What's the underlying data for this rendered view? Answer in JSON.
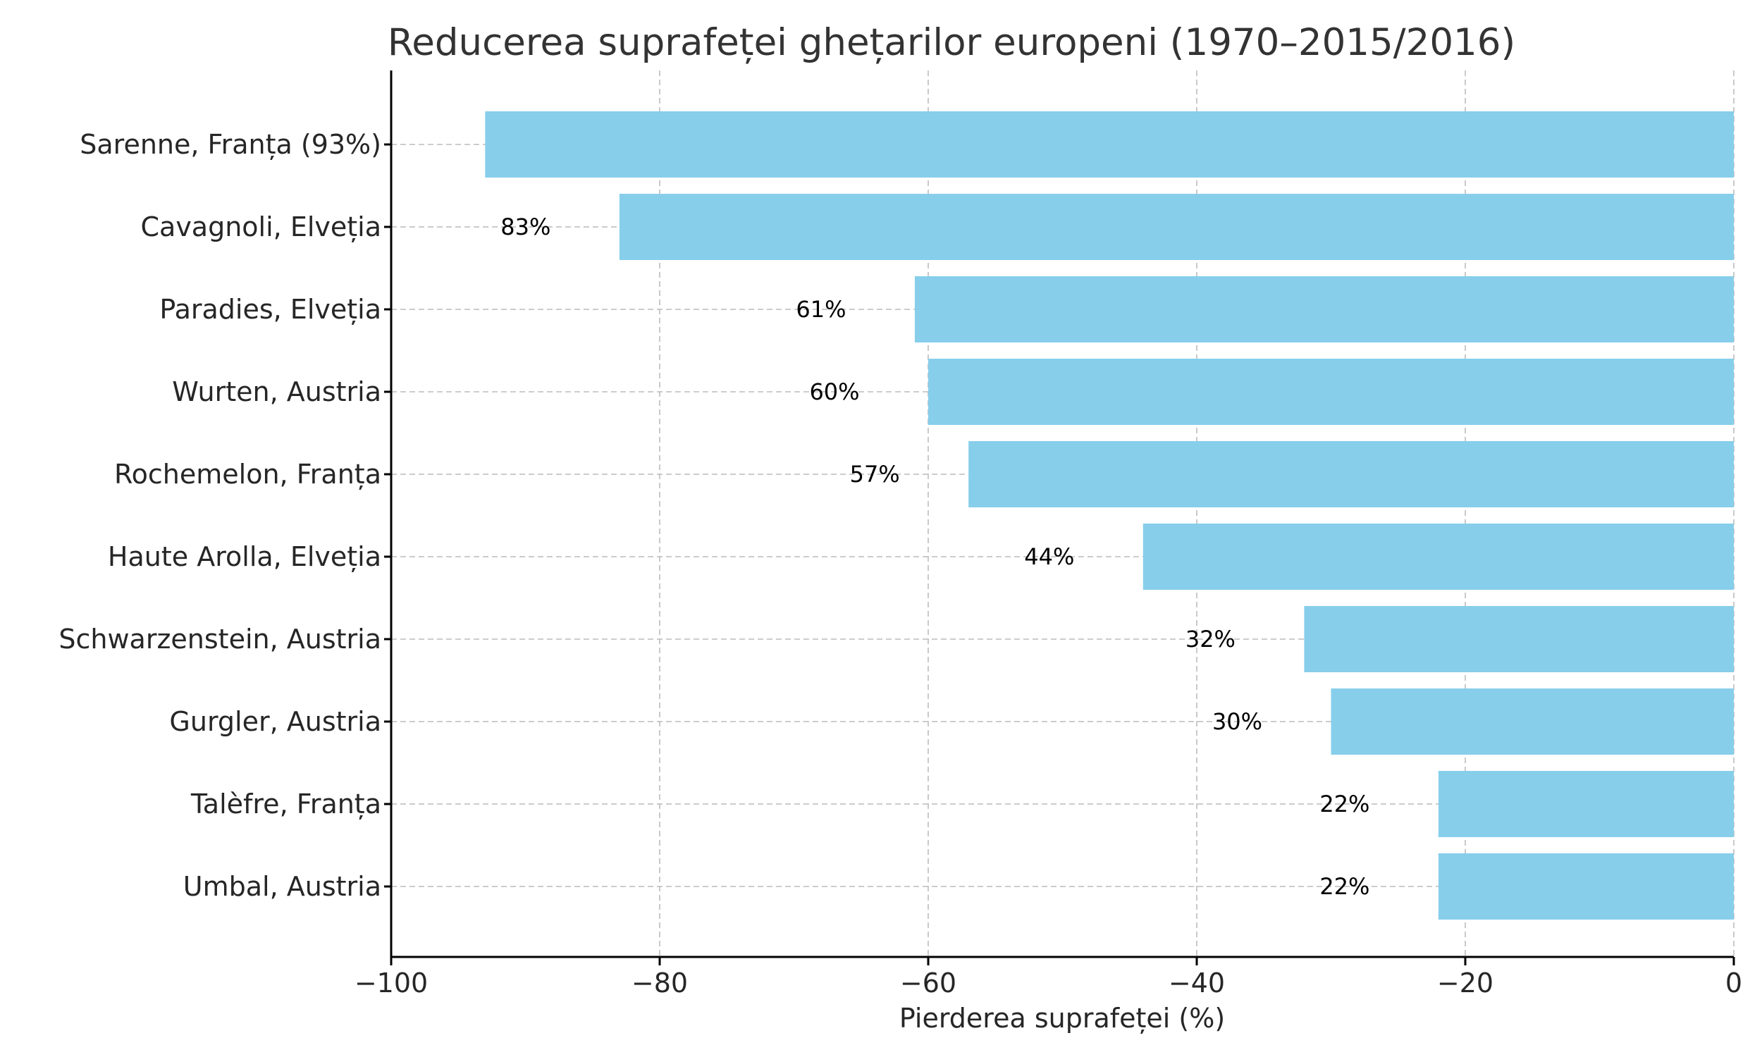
{
  "chart_data": {
    "type": "bar",
    "orientation": "horizontal",
    "title": "Reducerea suprafeței ghețarilor europeni (1970–2015/2016)",
    "xlabel": "Pierderea suprafeței (%)",
    "ylabel": "",
    "xlim": [
      -100,
      0
    ],
    "xticks": [
      -100,
      -80,
      -60,
      -40,
      -20,
      0
    ],
    "xtick_labels": [
      "−100",
      "−80",
      "−60",
      "−40",
      "−20",
      "0"
    ],
    "grid": true,
    "categories": [
      "Sarenne, Franța  (93%)",
      "Cavagnoli, Elveția",
      "Paradies, Elveția",
      "Wurten, Austria",
      "Rochemelon, Franța",
      "Haute Arolla, Elveția",
      "Schwarzenstein, Austria",
      "Gurgler, Austria",
      "Talèfre, Franța",
      "Umbal, Austria"
    ],
    "values": [
      -93,
      -83,
      -61,
      -60,
      -57,
      -44,
      -32,
      -30,
      -22,
      -22
    ],
    "data_labels": [
      "",
      "83%",
      "61%",
      "60%",
      "57%",
      "44%",
      "32%",
      "30%",
      "22%",
      "22%"
    ],
    "bar_color": "#87ceeb"
  }
}
